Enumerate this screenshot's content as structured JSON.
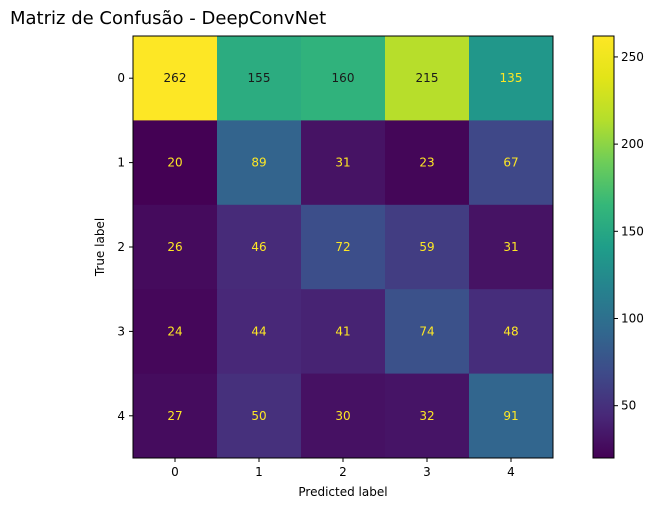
{
  "chart_data": {
    "type": "heatmap",
    "title": "Matriz de Confusão - DeepConvNet",
    "xlabel": "Predicted label",
    "ylabel": "True label",
    "x_categories": [
      "0",
      "1",
      "2",
      "3",
      "4"
    ],
    "y_categories": [
      "0",
      "1",
      "2",
      "3",
      "4"
    ],
    "values": [
      [
        262,
        155,
        160,
        215,
        135
      ],
      [
        20,
        89,
        31,
        23,
        67
      ],
      [
        26,
        46,
        72,
        59,
        31
      ],
      [
        24,
        44,
        41,
        74,
        48
      ],
      [
        27,
        50,
        30,
        32,
        91
      ]
    ],
    "colormap": "viridis",
    "colorbar": {
      "range": [
        20,
        262
      ],
      "ticks": [
        50,
        100,
        150,
        200,
        250
      ]
    },
    "text_colors": {
      "low": "#fde725",
      "high": "#1a1a1a"
    },
    "grid": false
  }
}
